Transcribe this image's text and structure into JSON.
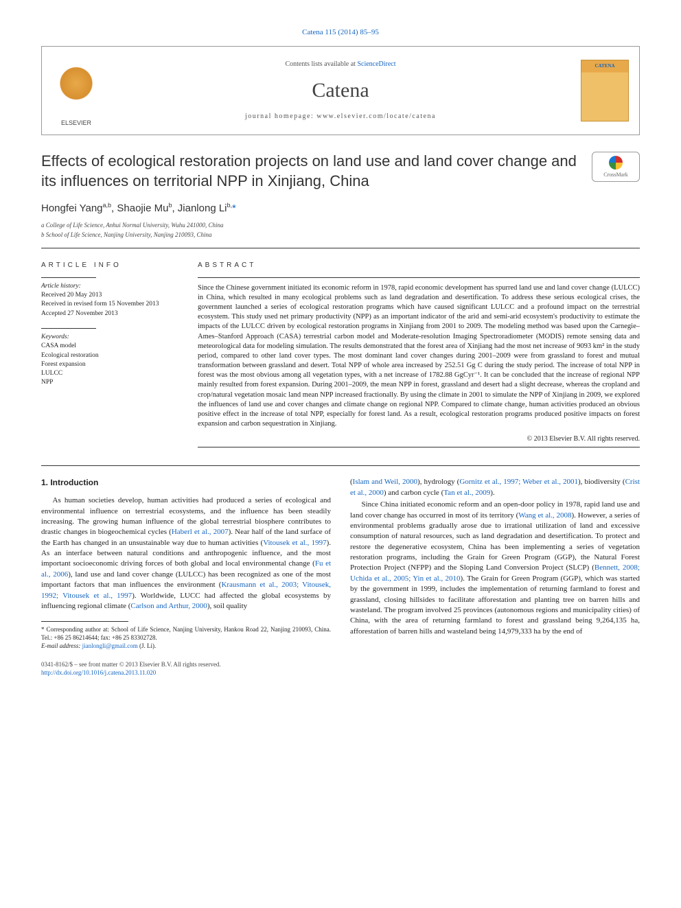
{
  "citation": {
    "prefix": "",
    "linked": "Catena 115 (2014) 85–95"
  },
  "header": {
    "contents_prefix": "Contents lists available at ",
    "contents_link": "ScienceDirect",
    "journal": "Catena",
    "homepage": "journal homepage: www.elsevier.com/locate/catena",
    "cover_text": "CATENA"
  },
  "crossmark_label": "CrossMark",
  "title": "Effects of ecological restoration projects on land use and land cover change and its influences on territorial NPP in Xinjiang, China",
  "authors_html": "Hongfei Yang",
  "author_sup1": "a,b",
  "author2": ", Shaojie Mu",
  "author_sup2": "b",
  "author3": ", Jianlong Li",
  "author_sup3": "b,",
  "author_star": "*",
  "affiliations": {
    "a": "a  College of Life Science, Anhui Normal University, Wuhu 241000, China",
    "b": "b  School of Life Science, Nanjing University, Nanjing 210093, China"
  },
  "info": {
    "heading": "article info",
    "history_label": "Article history:",
    "received": "Received 20 May 2013",
    "revised": "Received in revised form 15 November 2013",
    "accepted": "Accepted 27 November 2013",
    "keywords_label": "Keywords:",
    "keywords": [
      "CASA model",
      "Ecological restoration",
      "Forest expansion",
      "LULCC",
      "NPP"
    ]
  },
  "abstract": {
    "heading": "abstract",
    "text": "Since the Chinese government initiated its economic reform in 1978, rapid economic development has spurred land use and land cover change (LULCC) in China, which resulted in many ecological problems such as land degradation and desertification. To address these serious ecological crises, the government launched a series of ecological restoration programs which have caused significant LULCC and a profound impact on the terrestrial ecosystem. This study used net primary productivity (NPP) as an important indicator of the arid and semi-arid ecosystem's productivity to estimate the impacts of the LULCC driven by ecological restoration programs in Xinjiang from 2001 to 2009. The modeling method was based upon the Carnegie–Ames–Stanford Approach (CASA) terrestrial carbon model and Moderate-resolution Imaging Spectroradiometer (MODIS) remote sensing data and meteorological data for modeling simulation. The results demonstrated that the forest area of Xinjiang had the most net increase of 9093 km² in the study period, compared to other land cover types. The most dominant land cover changes during 2001–2009 were from grassland to forest and mutual transformation between grassland and desert. Total NPP of whole area increased by 252.51 Gg C during the study period. The increase of total NPP in forest was the most obvious among all vegetation types, with a net increase of 1782.88 GgCyr⁻¹. It can be concluded that the increase of regional NPP mainly resulted from forest expansion. During 2001–2009, the mean NPP in forest, grassland and desert had a slight decrease, whereas the cropland and crop/natural vegetation mosaic land mean NPP increased fractionally. By using the climate in 2001 to simulate the NPP of Xinjiang in 2009, we explored the influences of land use and cover changes and climate change on regional NPP. Compared to climate change, human activities produced an obvious positive effect in the increase of total NPP, especially for forest land. As a result, ecological restoration programs produced positive impacts on forest expansion and carbon sequestration in Xinjiang.",
    "copyright": "© 2013 Elsevier B.V. All rights reserved."
  },
  "body": {
    "section_heading": "1. Introduction",
    "col1_p1a": "As human societies develop, human activities had produced a series of ecological and environmental influence on terrestrial ecosystems, and the influence has been steadily increasing. The growing human influence of the global terrestrial biosphere contributes to drastic changes in biogeochemical cycles (",
    "ref1": "Haberl et al., 2007",
    "col1_p1b": "). Near half of the land surface of the Earth has changed in an unsustainable way due to human activities (",
    "ref2": "Vitousek et al., 1997",
    "col1_p1c": "). As an interface between natural conditions and anthropogenic influence, and the most important socioeconomic driving forces of both global and local environmental change (",
    "ref3": "Fu et al., 2006",
    "col1_p1d": "), land use and land cover change (LULCC) has been recognized as one of the most important factors that man influences the environment (",
    "ref4": "Krausmann et al., 2003; Vitousek, 1992; Vitousek et al., 1997",
    "col1_p1e": "). Worldwide, LUCC had affected the global ecosystems by influencing regional climate (",
    "ref5": "Carlson and Arthur, 2000",
    "col1_p1f": "), soil quality",
    "col2_p1a": "(",
    "ref6": "Islam and Weil, 2000",
    "col2_p1b": "), hydrology (",
    "ref7": "Gornitz et al., 1997; Weber et al., 2001",
    "col2_p1c": "), biodiversity (",
    "ref8": "Crist et al., 2000",
    "col2_p1d": ") and carbon cycle (",
    "ref9": "Tan et al., 2009",
    "col2_p1e": ").",
    "col2_p2a": "Since China initiated economic reform and an open-door policy in 1978, rapid land use and land cover change has occurred in most of its territory (",
    "ref10": "Wang et al., 2008",
    "col2_p2b": "). However, a series of environmental problems gradually arose due to irrational utilization of land and excessive consumption of natural resources, such as land degradation and desertification. To protect and restore the degenerative ecosystem, China has been implementing a series of vegetation restoration programs, including the Grain for Green Program (GGP), the Natural Forest Protection Project (NFPP) and the Sloping Land Conversion Project (SLCP) (",
    "ref11": "Bennett, 2008; Uchida et al., 2005; Yin et al., 2010",
    "col2_p2c": "). The Grain for Green Program (GGP), which was started by the government in 1999, includes the implementation of returning farmland to forest and grassland, closing hillsides to facilitate afforestation and planting tree on barren hills and wasteland. The program involved 25 provinces (autonomous regions and municipality cities) of China, with the area of returning farmland to forest and grassland being 9,264,135 ha, afforestation of barren hills and wasteland being 14,979,333 ha by the end of"
  },
  "footnotes": {
    "corr": "* Corresponding author at: School of Life Science, Nanjing University, Hankou Road 22, Nanjing 210093, China. Tel.: +86 25 86214644; fax: +86 25 83302728.",
    "email_label": "E-mail address: ",
    "email": "jianlongli@gmail.com",
    "email_suffix": " (J. Li)."
  },
  "bottom": {
    "line1": "0341-8162/$ – see front matter © 2013 Elsevier B.V. All rights reserved.",
    "doi": "http://dx.doi.org/10.1016/j.catena.2013.11.020"
  }
}
